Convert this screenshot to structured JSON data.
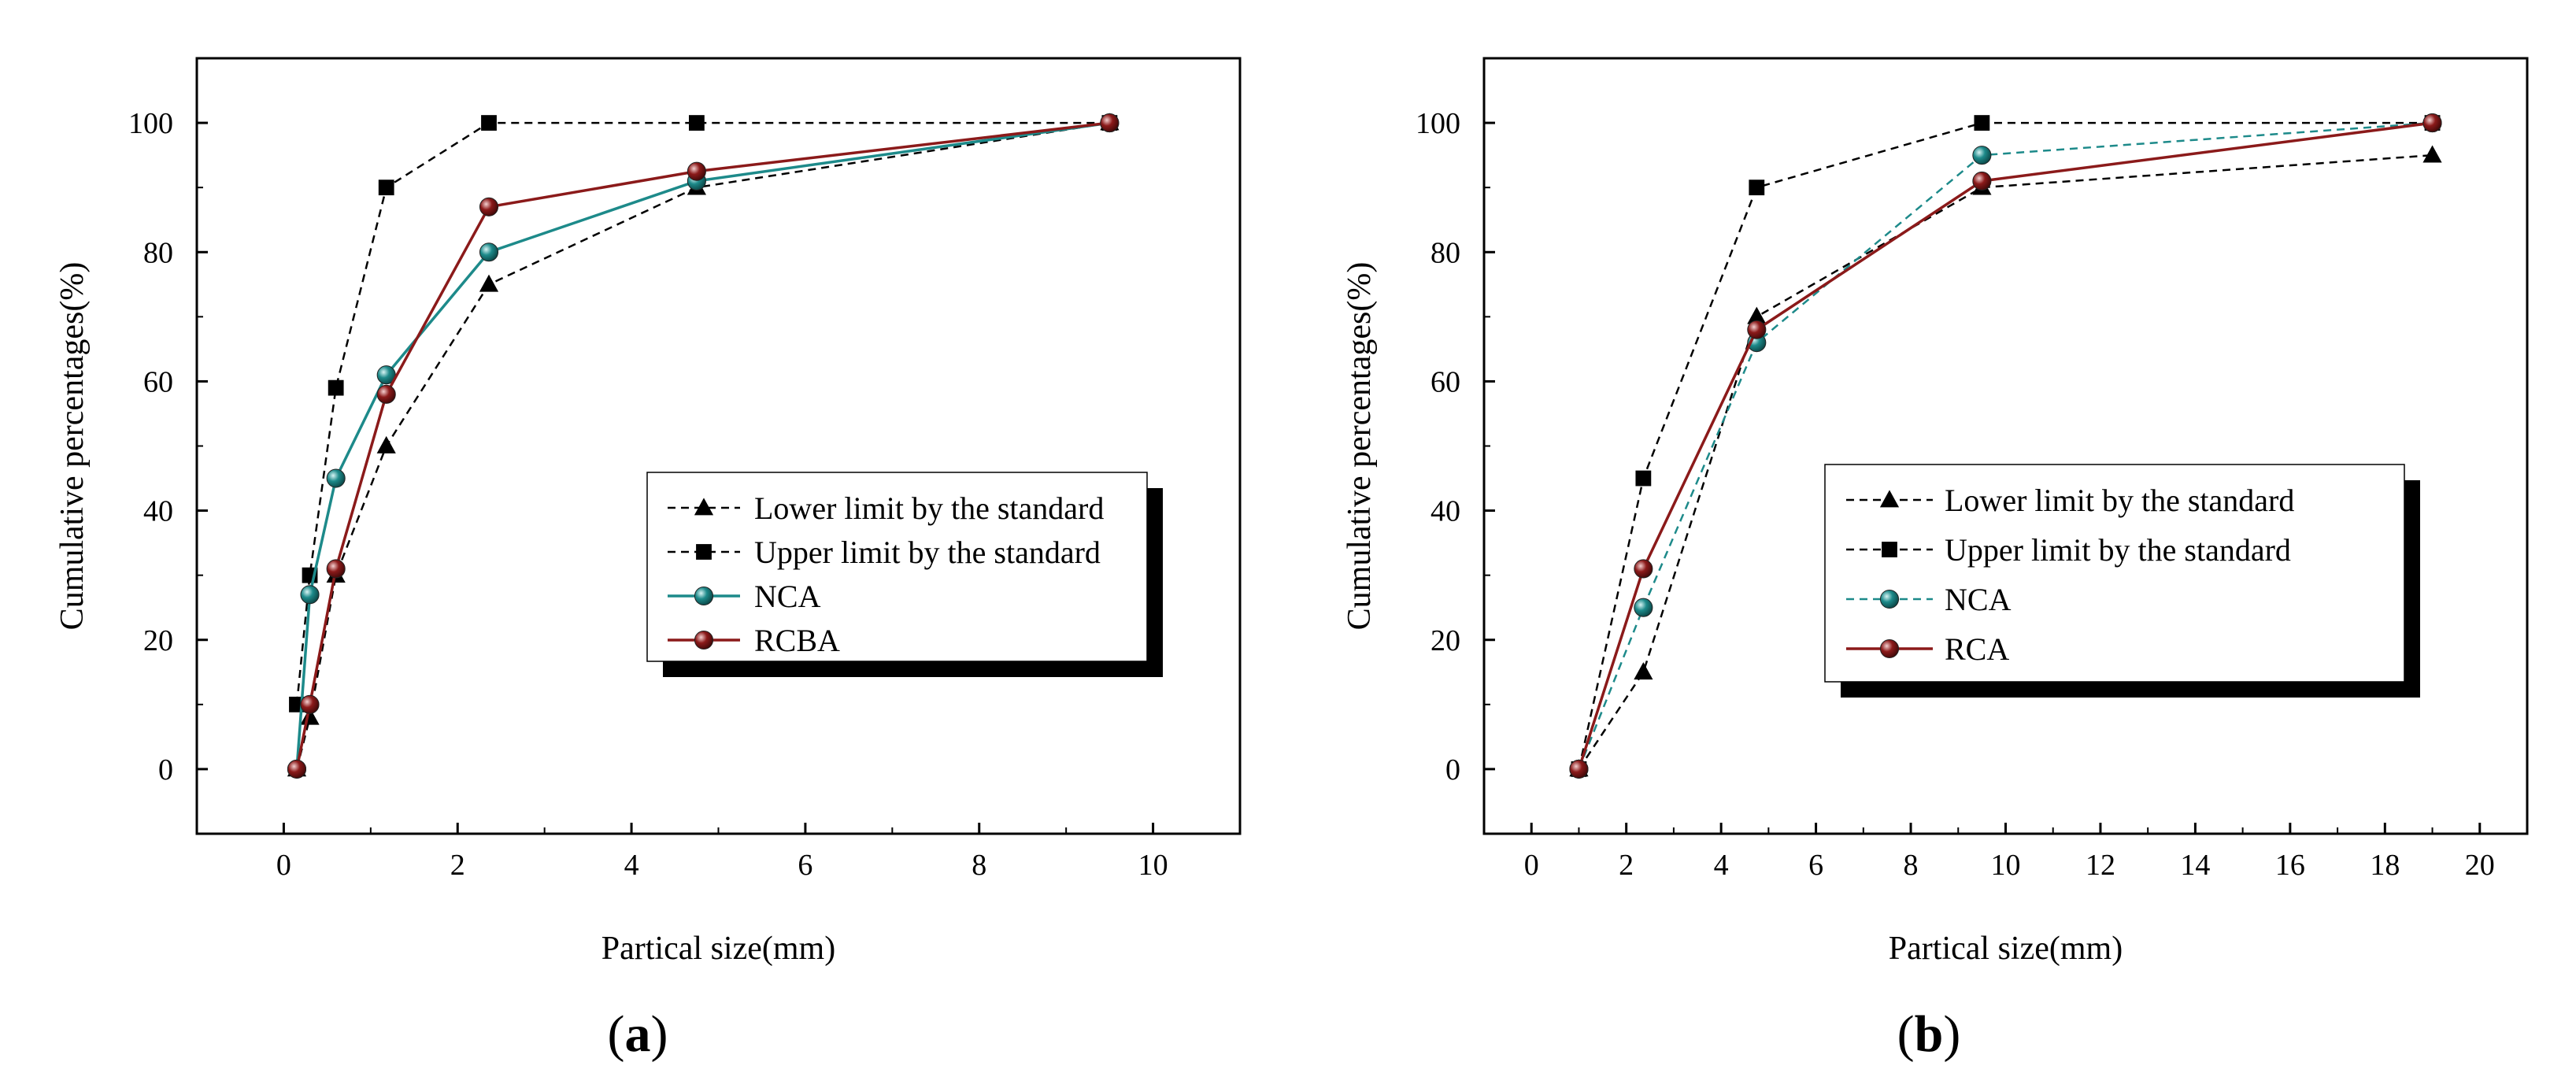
{
  "colors": {
    "limit": "#000000",
    "nca": "#1d8a8a",
    "rcba": "#8b1a1a",
    "rca": "#8b1a1a"
  },
  "chart_data": [
    {
      "type": "line",
      "panel_label": {
        "open": "(",
        "letter": "a",
        "close": ")"
      },
      "xlabel": "Partical size(mm)",
      "ylabel": "Cumulative percentages(%)",
      "xlim": [
        -1,
        11
      ],
      "ylim": [
        -10,
        110
      ],
      "xticks": [
        0,
        2,
        4,
        6,
        8,
        10
      ],
      "yticks": [
        0,
        20,
        40,
        60,
        80,
        100
      ],
      "legend_position": "lower-right",
      "series": [
        {
          "name": "Lower limit by the standard",
          "style": "dashed",
          "marker": "triangle",
          "color": "#000000",
          "x": [
            0.15,
            0.3,
            0.6,
            1.18,
            2.36,
            4.75,
            9.5
          ],
          "y": [
            0,
            8,
            30,
            50,
            75,
            90,
            100
          ]
        },
        {
          "name": "Upper limit by the standard",
          "style": "dashed",
          "marker": "square",
          "color": "#000000",
          "x": [
            0.15,
            0.3,
            0.6,
            1.18,
            2.36,
            4.75,
            9.5
          ],
          "y": [
            10,
            30,
            59,
            90,
            100,
            100,
            100
          ]
        },
        {
          "name": "NCA",
          "style": "solid",
          "marker": "sphere",
          "color": "#1d8a8a",
          "x": [
            0.15,
            0.3,
            0.6,
            1.18,
            2.36,
            4.75,
            9.5
          ],
          "y": [
            0,
            27,
            45,
            61,
            80,
            91,
            100
          ]
        },
        {
          "name": "RCBA",
          "style": "solid",
          "marker": "sphere",
          "color": "#8b1a1a",
          "x": [
            0.15,
            0.3,
            0.6,
            1.18,
            2.36,
            4.75,
            9.5
          ],
          "y": [
            0,
            10,
            31,
            58,
            87,
            92.5,
            100
          ]
        }
      ]
    },
    {
      "type": "line",
      "panel_label": {
        "open": "(",
        "letter": "b",
        "close": ")"
      },
      "xlabel": "Partical size(mm)",
      "ylabel": "Cumulative percentages(%)",
      "xlim": [
        -1,
        21
      ],
      "ylim": [
        -10,
        110
      ],
      "xticks": [
        0,
        2,
        4,
        6,
        8,
        10,
        12,
        14,
        16,
        18,
        20
      ],
      "yticks": [
        0,
        20,
        40,
        60,
        80,
        100
      ],
      "legend_position": "center-right",
      "series": [
        {
          "name": "Lower limit by the standard",
          "style": "dashed",
          "marker": "triangle",
          "color": "#000000",
          "x": [
            1,
            2.36,
            4.75,
            9.5,
            19
          ],
          "y": [
            0,
            15,
            70,
            90,
            95
          ]
        },
        {
          "name": "Upper limit by the standard",
          "style": "dashed",
          "marker": "square",
          "color": "#000000",
          "x": [
            1,
            2.36,
            4.75,
            9.5,
            19
          ],
          "y": [
            0,
            45,
            90,
            100,
            100
          ]
        },
        {
          "name": "NCA",
          "style": "dashed",
          "marker": "sphere",
          "color": "#1d8a8a",
          "x": [
            1,
            2.36,
            4.75,
            9.5,
            19
          ],
          "y": [
            0,
            25,
            66,
            95,
            100
          ]
        },
        {
          "name": "RCA",
          "style": "solid",
          "marker": "sphere",
          "color": "#8b1a1a",
          "x": [
            1,
            2.36,
            4.75,
            9.5,
            19
          ],
          "y": [
            0,
            31,
            68,
            91,
            100
          ]
        }
      ]
    }
  ]
}
